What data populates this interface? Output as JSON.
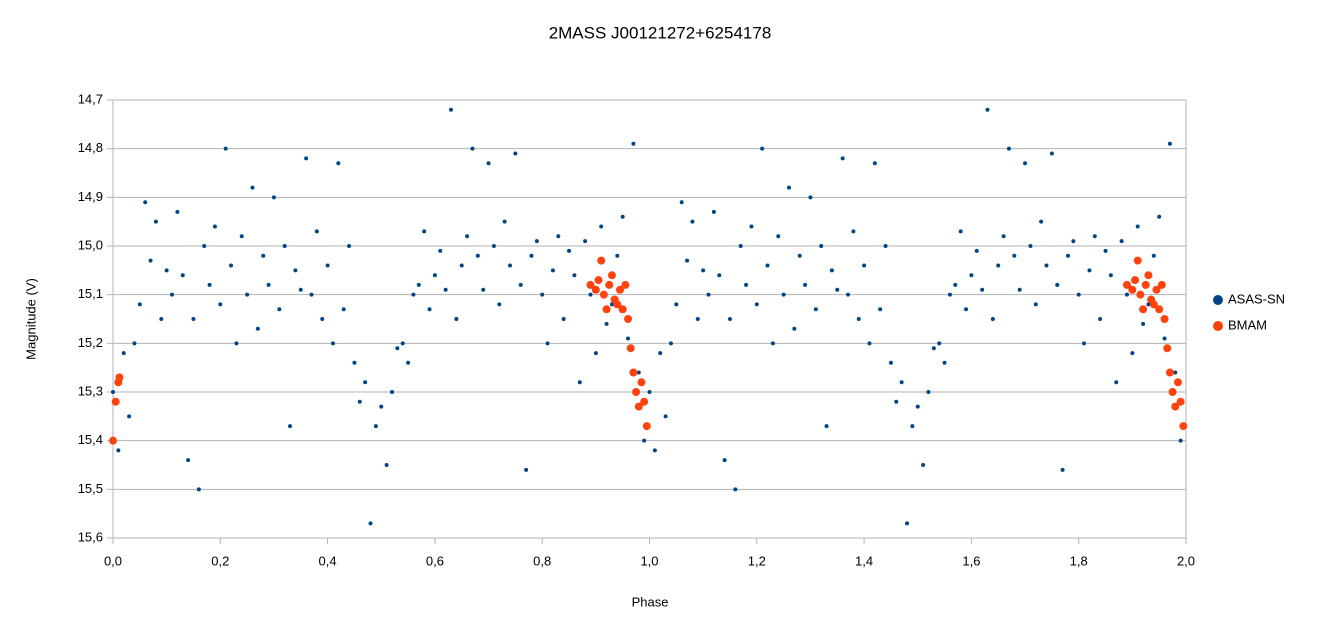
{
  "chart_data": {
    "type": "scatter",
    "title": "2MASS J00121272+6254178",
    "x_label": "Phase",
    "y_label": "Magnitude (V)",
    "xlim": [
      0,
      2
    ],
    "ylim": [
      15.6,
      14.7
    ],
    "xticks": [
      {
        "value": 0,
        "label": "0,0"
      },
      {
        "value": 0.2,
        "label": "0,2"
      },
      {
        "value": 0.4,
        "label": "0,4"
      },
      {
        "value": 0.6,
        "label": "0,6"
      },
      {
        "value": 0.8,
        "label": "0,8"
      },
      {
        "value": 1,
        "label": "1,0"
      },
      {
        "value": 1.2,
        "label": "1,2"
      },
      {
        "value": 1.4,
        "label": "1,4"
      },
      {
        "value": 1.6,
        "label": "1,6"
      },
      {
        "value": 1.8,
        "label": "1,8"
      },
      {
        "value": 2,
        "label": "2,0"
      }
    ],
    "yticks": [
      {
        "value": 14.7,
        "label": "14,7"
      },
      {
        "value": 14.8,
        "label": "14,8"
      },
      {
        "value": 14.9,
        "label": "14,9"
      },
      {
        "value": 15,
        "label": "15,0"
      },
      {
        "value": 15.1,
        "label": "15,1"
      },
      {
        "value": 15.2,
        "label": "15,2"
      },
      {
        "value": 15.3,
        "label": "15,3"
      },
      {
        "value": 15.4,
        "label": "15,4"
      },
      {
        "value": 15.5,
        "label": "15,5"
      },
      {
        "value": 15.6,
        "label": "15,6"
      }
    ],
    "grid": true,
    "legend": "right",
    "series": [
      {
        "name": "ASAS-SN",
        "color": "#004586",
        "x": [
          0,
          0.01,
          0.02,
          0.03,
          0.04,
          0.05,
          0.06,
          0.07,
          0.08,
          0.09,
          0.1,
          0.11,
          0.12,
          0.13,
          0.14,
          0.15,
          0.16,
          0.17,
          0.18,
          0.19,
          0.2,
          0.21,
          0.22,
          0.23,
          0.24,
          0.25,
          0.26,
          0.27,
          0.28,
          0.29,
          0.3,
          0.31,
          0.32,
          0.33,
          0.34,
          0.35,
          0.36,
          0.37,
          0.38,
          0.39,
          0.4,
          0.41,
          0.42,
          0.43,
          0.44,
          0.45,
          0.46,
          0.47,
          0.48,
          0.49,
          0.5,
          0.51,
          0.52,
          0.53,
          0.54,
          0.55,
          0.56,
          0.57,
          0.58,
          0.59,
          0.6,
          0.61,
          0.62,
          0.63,
          0.64,
          0.65,
          0.66,
          0.67,
          0.68,
          0.69,
          0.7,
          0.71,
          0.72,
          0.73,
          0.74,
          0.75,
          0.76,
          0.77,
          0.78,
          0.79,
          0.8,
          0.81,
          0.82,
          0.83,
          0.84,
          0.85,
          0.86,
          0.87,
          0.88,
          0.89,
          0.9,
          0.91,
          0.92,
          0.93,
          0.94,
          0.95,
          0.96,
          0.97,
          0.98,
          0.99,
          1,
          1.01,
          1.02,
          1.03,
          1.04,
          1.05,
          1.06,
          1.07,
          1.08,
          1.09,
          1.1,
          1.11,
          1.12,
          1.13,
          1.14,
          1.15,
          1.16,
          1.17,
          1.18,
          1.19,
          1.2,
          1.21,
          1.22,
          1.23,
          1.24,
          1.25,
          1.26,
          1.27,
          1.28,
          1.29,
          1.3,
          1.31,
          1.32,
          1.33,
          1.34,
          1.35,
          1.36,
          1.37,
          1.38,
          1.39,
          1.4,
          1.41,
          1.42,
          1.43,
          1.44,
          1.45,
          1.46,
          1.47,
          1.48,
          1.49,
          1.5,
          1.51,
          1.52,
          1.53,
          1.54,
          1.55,
          1.56,
          1.57,
          1.58,
          1.59,
          1.6,
          1.61,
          1.62,
          1.63,
          1.64,
          1.65,
          1.66,
          1.67,
          1.68,
          1.69,
          1.7,
          1.71,
          1.72,
          1.73,
          1.74,
          1.75,
          1.76,
          1.77,
          1.78,
          1.79,
          1.8,
          1.81,
          1.82,
          1.83,
          1.84,
          1.85,
          1.86,
          1.87,
          1.88,
          1.89,
          1.9,
          1.91,
          1.92,
          1.93,
          1.94,
          1.95,
          1.96,
          1.97,
          1.98,
          1.99
        ],
        "values": [
          15.3,
          15.42,
          15.22,
          15.35,
          15.2,
          15.12,
          14.91,
          15.03,
          14.95,
          15.15,
          15.05,
          15.1,
          14.93,
          15.06,
          15.44,
          15.15,
          15.5,
          15,
          15.08,
          14.96,
          15.12,
          14.8,
          15.04,
          15.2,
          14.98,
          15.1,
          14.88,
          15.17,
          15.02,
          15.08,
          14.9,
          15.13,
          15,
          15.37,
          15.05,
          15.09,
          14.82,
          15.1,
          14.97,
          15.15,
          15.04,
          15.2,
          14.83,
          15.13,
          15,
          15.24,
          15.32,
          15.28,
          15.57,
          15.37,
          15.33,
          15.45,
          15.3,
          15.21,
          15.2,
          15.24,
          15.1,
          15.08,
          14.97,
          15.13,
          15.06,
          15.01,
          15.09,
          14.72,
          15.15,
          15.04,
          14.98,
          14.8,
          15.02,
          15.09,
          14.83,
          15,
          15.12,
          14.95,
          15.04,
          14.81,
          15.08,
          15.46,
          15.02,
          14.99,
          15.1,
          15.2,
          15.05,
          14.98,
          15.15,
          15.01,
          15.06,
          15.28,
          14.99,
          15.1,
          15.22,
          14.96,
          15.16,
          15.12,
          15.02,
          14.94,
          15.19,
          14.79,
          15.26,
          15.4,
          15.3,
          15.42,
          15.22,
          15.35,
          15.2,
          15.12,
          14.91,
          15.03,
          14.95,
          15.15,
          15.05,
          15.1,
          14.93,
          15.06,
          15.44,
          15.15,
          15.5,
          15,
          15.08,
          14.96,
          15.12,
          14.8,
          15.04,
          15.2,
          14.98,
          15.1,
          14.88,
          15.17,
          15.02,
          15.08,
          14.9,
          15.13,
          15,
          15.37,
          15.05,
          15.09,
          14.82,
          15.1,
          14.97,
          15.15,
          15.04,
          15.2,
          14.83,
          15.13,
          15,
          15.24,
          15.32,
          15.28,
          15.57,
          15.37,
          15.33,
          15.45,
          15.3,
          15.21,
          15.2,
          15.24,
          15.1,
          15.08,
          14.97,
          15.13,
          15.06,
          15.01,
          15.09,
          14.72,
          15.15,
          15.04,
          14.98,
          14.8,
          15.02,
          15.09,
          14.83,
          15,
          15.12,
          14.95,
          15.04,
          14.81,
          15.08,
          15.46,
          15.02,
          14.99,
          15.1,
          15.2,
          15.05,
          14.98,
          15.15,
          15.01,
          15.06,
          15.28,
          14.99,
          15.1,
          15.22,
          14.96,
          15.16,
          15.12,
          15.02,
          14.94,
          15.19,
          14.79,
          15.26,
          15.4
        ]
      },
      {
        "name": "BMAM",
        "color": "#ff420e",
        "x": [
          0,
          0.005,
          0.01,
          0.012,
          0.89,
          0.9,
          0.905,
          0.91,
          0.915,
          0.92,
          0.925,
          0.93,
          0.935,
          0.94,
          0.945,
          0.95,
          0.955,
          0.96,
          0.965,
          0.97,
          0.975,
          0.98,
          0.985,
          0.99,
          0.995,
          1.89,
          1.9,
          1.905,
          1.91,
          1.915,
          1.92,
          1.925,
          1.93,
          1.935,
          1.94,
          1.945,
          1.95,
          1.955,
          1.96,
          1.965,
          1.97,
          1.975,
          1.98,
          1.985,
          1.99,
          1.995
        ],
        "values": [
          15.4,
          15.32,
          15.28,
          15.27,
          15.08,
          15.09,
          15.07,
          15.03,
          15.1,
          15.13,
          15.08,
          15.06,
          15.11,
          15.12,
          15.09,
          15.13,
          15.08,
          15.15,
          15.21,
          15.26,
          15.3,
          15.33,
          15.28,
          15.32,
          15.37,
          15.08,
          15.09,
          15.07,
          15.03,
          15.1,
          15.13,
          15.08,
          15.06,
          15.11,
          15.12,
          15.09,
          15.13,
          15.08,
          15.15,
          15.21,
          15.26,
          15.3,
          15.33,
          15.28,
          15.32,
          15.37
        ]
      }
    ]
  }
}
